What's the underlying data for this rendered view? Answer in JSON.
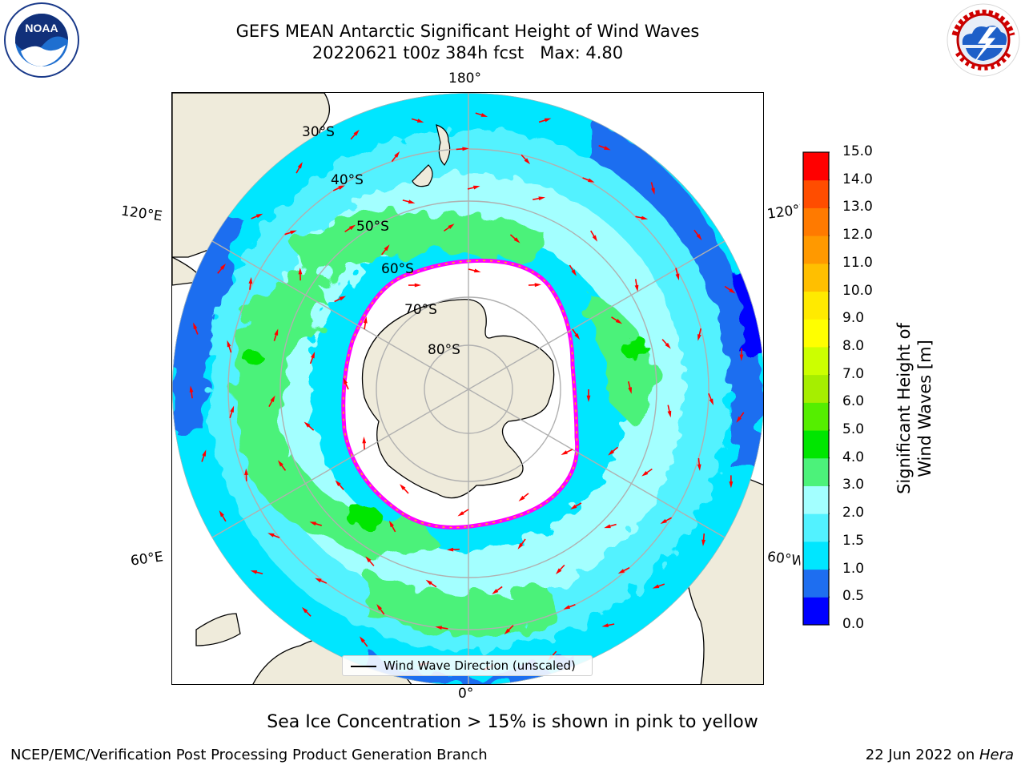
{
  "header": {
    "title_line1": "GEFS MEAN Antarctic Significant Height of Wind Waves",
    "title_line2": "20220621 t00z 384h fcst   Max: 4.80"
  },
  "logos": {
    "left": {
      "name": "noaa-logo",
      "text": "NOAA",
      "ring_text": "NATIONAL OCEANIC AND ATMOSPHERIC ADMINISTRATION · U.S. DEPARTMENT OF COMMERCE"
    },
    "right": {
      "name": "nws-logo",
      "ring_text": "NATIONAL WEATHER SERVICE"
    }
  },
  "map": {
    "projection": "south-polar-stereographic",
    "longitude_labels": {
      "top": "180°",
      "bottom": "0°",
      "left_upper": "120°E",
      "left_lower": "60°E",
      "right_upper": "120°W",
      "right_lower": "60°W"
    },
    "latitude_labels": [
      "30°S",
      "40°S",
      "50°S",
      "60°S",
      "70°S",
      "80°S"
    ],
    "legend_label": "Wind Wave Direction (unscaled)",
    "arrow_color": "#ff0000",
    "land_color": "#efebdb",
    "ice_color": "#ffffff",
    "ice_edge_colors": [
      "#ff00ff",
      "#ff9933",
      "#ffff00"
    ]
  },
  "colorbar": {
    "label": "Significant Height of Wind Waves [m]",
    "ticks": [
      "0.0",
      "0.5",
      "1.0",
      "1.5",
      "2.0",
      "3.0",
      "4.0",
      "5.0",
      "6.0",
      "7.0",
      "8.0",
      "9.0",
      "10.0",
      "11.0",
      "12.0",
      "13.0",
      "14.0",
      "15.0"
    ],
    "colors": [
      "#0000ff",
      "#1e6ef0",
      "#00e6ff",
      "#52f2ff",
      "#a3ffff",
      "#4cf27a",
      "#00e600",
      "#55ee00",
      "#a6ee00",
      "#ccff00",
      "#ffff00",
      "#ffea00",
      "#ffbf00",
      "#ff9900",
      "#ff7a00",
      "#ff4d00",
      "#ff0000"
    ]
  },
  "caption": "Sea Ice Concentration > 15% is shown in pink to yellow",
  "footer": {
    "left": "NCEP/EMC/Verification Post Processing Product Generation Branch",
    "right_date": "22 Jun 2022 on ",
    "right_host": "Hera"
  }
}
